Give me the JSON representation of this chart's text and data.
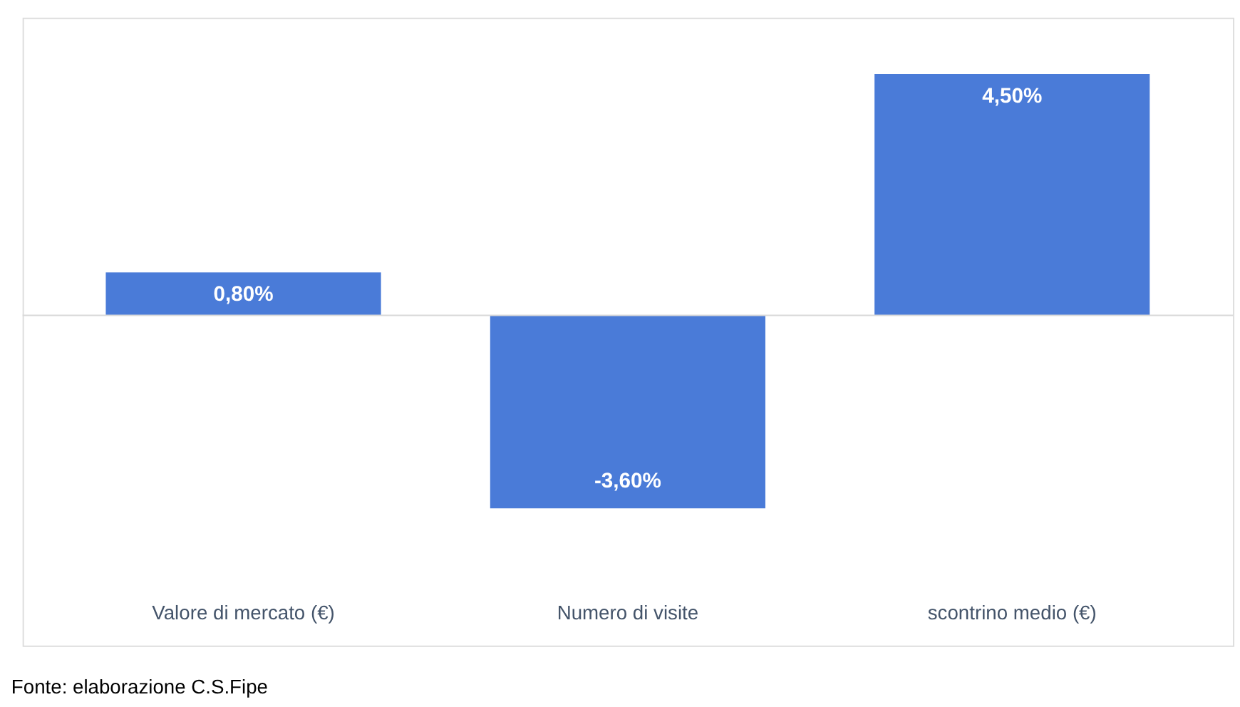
{
  "chart_data": {
    "type": "bar",
    "categories": [
      "Valore di mercato  (€)",
      "Numero di visite",
      "scontrino medio (€)"
    ],
    "values": [
      0.8,
      -3.6,
      4.5
    ],
    "value_labels": [
      "0,80%",
      "-3,60%",
      "4,50%"
    ],
    "color": "#4a7bd8",
    "annotations": [
      "Fonte: elaborazione C.S.Fipe"
    ]
  }
}
